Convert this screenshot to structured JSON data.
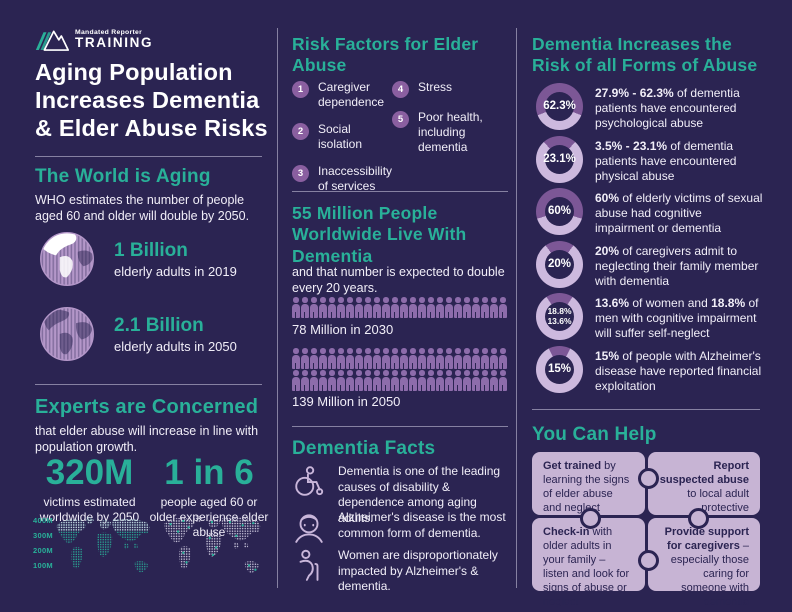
{
  "theme": {
    "background": "#2b2452",
    "accent_teal": "#29b099",
    "person_purple": "#8d6cab",
    "number_circle_purple": "#8a5fa0",
    "donut_dark": "#7c5796",
    "donut_light": "#cdb9de",
    "puzzle_bg": "#c7b4d4",
    "text_white": "#ffffff"
  },
  "logo": {
    "name_top": "Mandated Reporter",
    "name_bottom": "TRAINING"
  },
  "title": "Aging Population Increases Dementia & Elder Abuse Risks",
  "world_aging": {
    "heading": "The World is Aging",
    "body": "WHO estimates the number of people aged 60 and older will double by 2050.",
    "stats": [
      {
        "value": "1 Billion",
        "label": "elderly adults in 2019"
      },
      {
        "value": "2.1 Billion",
        "label": "elderly adults in 2050"
      }
    ]
  },
  "experts": {
    "heading": "Experts are Concerned",
    "body": "that elder abuse will increase in line with population growth.",
    "stats": [
      {
        "value": "320M",
        "label": "victims estimated worldwide by 2050"
      },
      {
        "value": "1 in 6",
        "label": "people aged 60 or older experience elder abuse"
      }
    ],
    "map_axis_labels": [
      "400M",
      "300M",
      "200M",
      "100M"
    ]
  },
  "risk_factors": {
    "heading": "Risk Factors for Elder Abuse",
    "items": [
      {
        "num": "1",
        "label": "Caregiver dependence"
      },
      {
        "num": "2",
        "label": "Social isolation"
      },
      {
        "num": "3",
        "label": "Inaccessibility of services"
      },
      {
        "num": "4",
        "label": "Stress"
      },
      {
        "num": "5",
        "label": "Poor health, including dementia"
      }
    ]
  },
  "dementia_numbers": {
    "heading": "55 Million People Worldwide Live With Dementia",
    "body": "and that number is expected to double every 20 years.",
    "pictographs": [
      {
        "label": "78 Million in 2030",
        "row_counts": [
          24
        ]
      },
      {
        "label": "139 Million in 2050",
        "row_counts": [
          24,
          24
        ]
      }
    ]
  },
  "dementia_facts": {
    "heading": "Dementia Facts",
    "items": [
      {
        "icon": "wheelchair-person-icon",
        "text": "Dementia is one of the leading causes of disability & dependence among aging adults."
      },
      {
        "icon": "elderly-man-icon",
        "text": "Alzheimer's disease is the most common form of dementia."
      },
      {
        "icon": "elderly-woman-cane-icon",
        "text": "Women are disproportionately impacted by Alzheimer's & dementia."
      }
    ]
  },
  "abuse_risk": {
    "heading": "Dementia Increases the Risk of all Forms of Abuse",
    "items": [
      {
        "ring_label": "62.3%",
        "ring_label2": "",
        "ring_pct": 62.3,
        "b1": "27.9% - 62.3%",
        "t1": " of dementia patients have encountered psychological abuse",
        "b2": "",
        "t2": ""
      },
      {
        "ring_label": "23.1%",
        "ring_label2": "",
        "ring_pct": 23.1,
        "b1": "3.5% - 23.1%",
        "t1": " of dementia patients have encountered physical abuse",
        "b2": "",
        "t2": ""
      },
      {
        "ring_label": "60%",
        "ring_label2": "",
        "ring_pct": 60,
        "b1": "60%",
        "t1": " of elderly victims of sexual abuse had cognitive impairment or dementia",
        "b2": "",
        "t2": ""
      },
      {
        "ring_label": "20%",
        "ring_label2": "",
        "ring_pct": 20,
        "b1": "20%",
        "t1": " of caregivers admit to neglecting their family member with dementia",
        "b2": "",
        "t2": ""
      },
      {
        "ring_label": "18.8%",
        "ring_label2": "13.6%",
        "ring_pct": 18.8,
        "b1": "13.6%",
        "t1": " of women and ",
        "b2": "18.8%",
        "t2": " of men with cognitive impairment will suffer self-neglect"
      },
      {
        "ring_label": "15%",
        "ring_label2": "",
        "ring_pct": 15,
        "b1": "15%",
        "t1": " of people with Alzheimer's disease have reported financial exploitation",
        "b2": "",
        "t2": ""
      }
    ]
  },
  "you_can_help": {
    "heading": "You Can Help",
    "pieces": [
      {
        "b": "Get trained",
        "rest": " by learning the signs of elder abuse and neglect"
      },
      {
        "b": "Report suspected abuse",
        "rest": " to local adult protective services or the police"
      },
      {
        "b": "Check-in",
        "rest": " with older adults in your family – listen and look for signs of abuse or neglect"
      },
      {
        "b": "Provide support for caregivers",
        "rest": " – especially those caring for someone with dementia"
      }
    ]
  },
  "chart_data": [
    {
      "type": "pie",
      "subtype": "donut-gauge-set",
      "title": "Dementia Increases the Risk of all Forms of Abuse",
      "items": [
        {
          "label": "psychological abuse encountered by dementia patients",
          "value_range": [
            27.9,
            62.3
          ],
          "shown": 62.3
        },
        {
          "label": "physical abuse encountered by dementia patients",
          "value_range": [
            3.5,
            23.1
          ],
          "shown": 23.1
        },
        {
          "label": "elderly sexual abuse victims with cognitive impairment or dementia",
          "shown": 60
        },
        {
          "label": "caregivers admitting neglect of family member with dementia",
          "shown": 20
        },
        {
          "label": "women with cognitive impairment who will suffer self-neglect",
          "shown": 13.6
        },
        {
          "label": "men with cognitive impairment who will suffer self-neglect",
          "shown": 18.8
        },
        {
          "label": "people with Alzheimer's reporting financial exploitation",
          "shown": 15
        }
      ]
    },
    {
      "type": "bar",
      "subtype": "pictograph",
      "title": "55 Million People Worldwide Live With Dementia",
      "categories": [
        "2030",
        "2050"
      ],
      "values": [
        78,
        139
      ],
      "ylabel": "Millions of people with dementia"
    },
    {
      "type": "bar",
      "subtype": "dot-map",
      "title": "Experts are Concerned",
      "categories": [
        "victims estimated worldwide by 2050",
        "people aged 60+ experiencing elder abuse"
      ],
      "values_text": [
        "320M",
        "1 in 6"
      ],
      "axis_labels": [
        "400M",
        "300M",
        "200M",
        "100M"
      ]
    }
  ]
}
